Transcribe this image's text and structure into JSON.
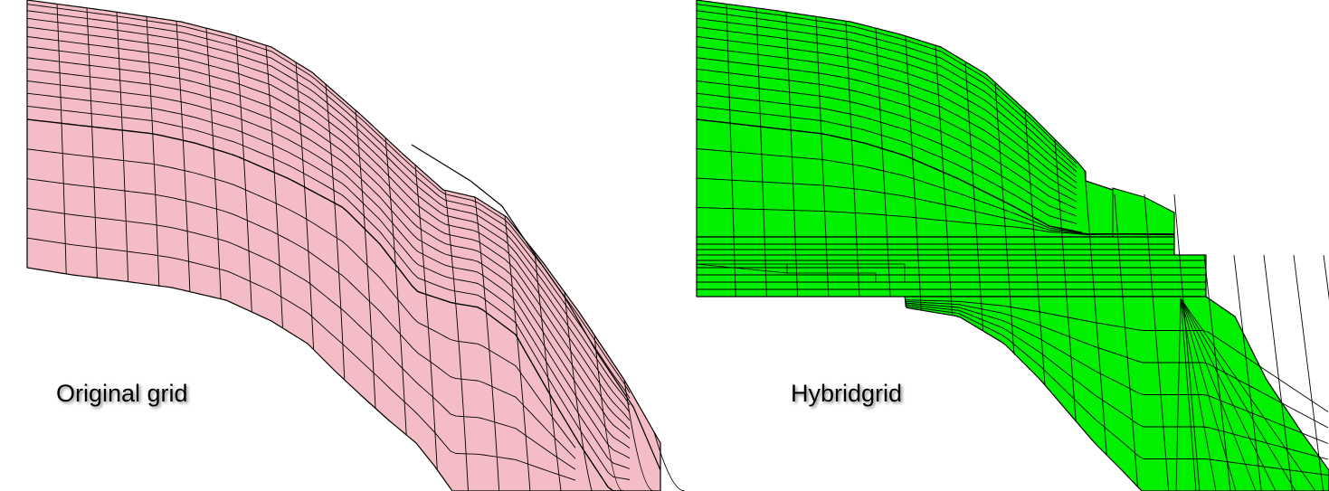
{
  "panels": [
    {
      "id": "original",
      "caption": "Original grid",
      "fill_color": "#f4bcc5",
      "line_color": "#000000"
    },
    {
      "id": "hybrid",
      "caption": "Hybridgrid",
      "fill_color": "#00f000",
      "line_color": "#000000"
    }
  ]
}
